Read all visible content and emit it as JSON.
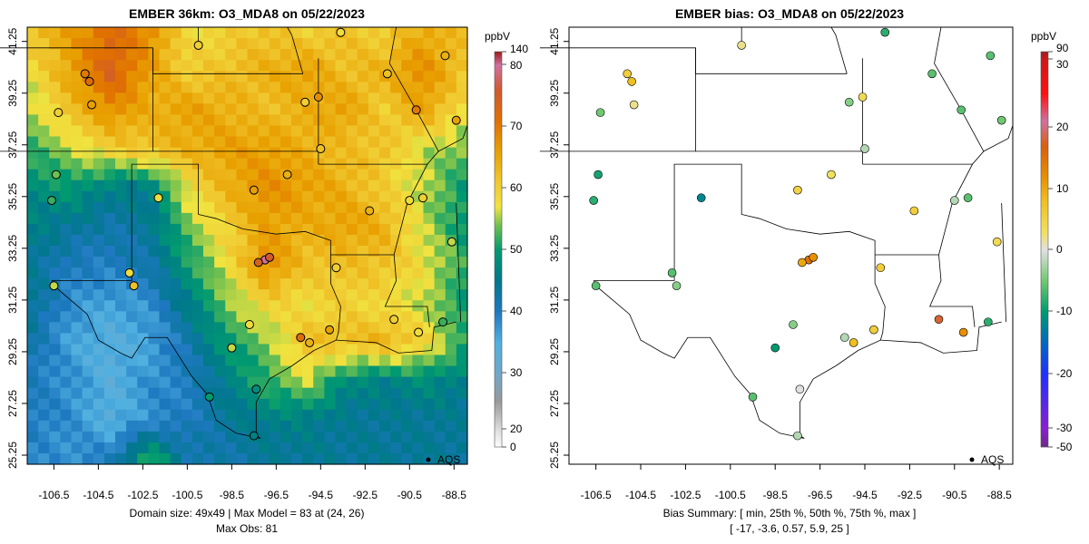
{
  "left": {
    "title": "EMBER 36km: O3_MDA8 on 05/22/2023",
    "footer_line1": "Domain size: 49x49 | Max Model = 83 at (24, 26)",
    "footer_line2": "Max Obs: 81",
    "legend_label": "AQS",
    "colorbar_unit": "ppbV",
    "colorbar_ticks": [
      "140",
      "80",
      "70",
      "60",
      "50",
      "40",
      "30",
      "20",
      "0"
    ]
  },
  "right": {
    "title": "EMBER bias: O3_MDA8 on 05/22/2023",
    "footer_line1": "Bias Summary: [ min, 25th %, 50th %, 75th %, max ]",
    "footer_line2": "[ -17,   -3.6,  0.57,  5.9,   25 ]",
    "legend_label": "AQS",
    "colorbar_unit": "ppbV",
    "colorbar_ticks": [
      "90",
      "30",
      "20",
      "10",
      "0",
      "-10",
      "-20",
      "-30",
      "-50"
    ]
  },
  "axes": {
    "x_ticks": [
      "-106.5",
      "-104.5",
      "-102.5",
      "-100.5",
      "-98.5",
      "-96.5",
      "-94.5",
      "-92.5",
      "-90.5",
      "-88.5"
    ],
    "y_ticks": [
      "41.25",
      "39.25",
      "37.25",
      "35.25",
      "33.25",
      "31.25",
      "29.25",
      "27.25",
      "25.25"
    ]
  },
  "chart_data": {
    "type": "heatmap",
    "lon_range": [
      -107.7,
      -87.9
    ],
    "lat_range": [
      24.9,
      41.8
    ],
    "model_grid_coarse": [
      [
        62,
        66,
        72,
        68,
        58,
        60,
        62,
        60,
        62,
        60,
        65,
        62
      ],
      [
        58,
        66,
        74,
        66,
        60,
        62,
        64,
        66,
        62,
        64,
        68,
        62
      ],
      [
        56,
        62,
        68,
        64,
        66,
        64,
        62,
        64,
        66,
        60,
        66,
        58
      ],
      [
        52,
        56,
        60,
        62,
        64,
        66,
        66,
        64,
        62,
        62,
        56,
        54
      ],
      [
        48,
        50,
        46,
        46,
        58,
        64,
        68,
        66,
        64,
        60,
        56,
        50
      ],
      [
        46,
        44,
        42,
        44,
        54,
        60,
        66,
        64,
        66,
        64,
        56,
        50
      ],
      [
        44,
        40,
        40,
        42,
        50,
        58,
        68,
        62,
        62,
        62,
        58,
        52
      ],
      [
        44,
        38,
        36,
        38,
        46,
        54,
        60,
        58,
        60,
        58,
        56,
        50
      ],
      [
        42,
        36,
        34,
        36,
        42,
        50,
        54,
        62,
        62,
        64,
        60,
        52
      ],
      [
        40,
        38,
        34,
        38,
        40,
        46,
        52,
        56,
        48,
        46,
        48,
        46
      ],
      [
        40,
        38,
        34,
        38,
        40,
        44,
        46,
        46,
        44,
        44,
        44,
        44
      ],
      [
        38,
        38,
        40,
        52,
        42,
        42,
        44,
        44,
        44,
        44,
        44,
        44
      ]
    ],
    "stations": [
      [
        -104.9,
        39.7,
        72,
        8
      ],
      [
        -105.1,
        40.0,
        70,
        6
      ],
      [
        -106.3,
        38.5,
        60,
        -5
      ],
      [
        -104.8,
        38.8,
        66,
        2
      ],
      [
        -106.6,
        35.1,
        52,
        -8
      ],
      [
        -106.4,
        36.1,
        54,
        -9
      ],
      [
        -103.1,
        32.3,
        58,
        -6
      ],
      [
        -106.5,
        31.8,
        56,
        -6
      ],
      [
        -97.5,
        35.5,
        66,
        5
      ],
      [
        -96.0,
        36.1,
        64,
        3
      ],
      [
        -95.2,
        38.9,
        60,
        -4
      ],
      [
        -94.6,
        39.1,
        68,
        4
      ],
      [
        -94.5,
        37.1,
        62,
        -2
      ],
      [
        -92.3,
        34.7,
        64,
        6
      ],
      [
        -90.2,
        38.6,
        70,
        -6
      ],
      [
        -90.5,
        35.1,
        58,
        -2
      ],
      [
        -97.0,
        32.8,
        80,
        15
      ],
      [
        -96.8,
        32.9,
        76,
        12
      ],
      [
        -97.3,
        32.7,
        74,
        10
      ],
      [
        -95.4,
        29.8,
        72,
        -2
      ],
      [
        -95.0,
        29.6,
        64,
        8
      ],
      [
        -94.1,
        30.1,
        66,
        6
      ],
      [
        -91.2,
        30.5,
        60,
        18
      ],
      [
        -90.1,
        30.0,
        58,
        12
      ],
      [
        -97.7,
        30.3,
        58,
        -4
      ],
      [
        -98.5,
        29.4,
        56,
        -10
      ],
      [
        -97.4,
        27.8,
        48,
        0
      ],
      [
        -97.5,
        26.0,
        46,
        -2
      ],
      [
        -93.8,
        32.5,
        60,
        6
      ],
      [
        -89.0,
        30.4,
        52,
        -8
      ],
      [
        -88.6,
        33.5,
        56,
        4
      ],
      [
        -89.9,
        35.2,
        60,
        -6
      ],
      [
        -88.4,
        38.2,
        66,
        -5
      ],
      [
        -88.9,
        40.7,
        64,
        -6
      ],
      [
        -91.5,
        40.0,
        62,
        -6
      ],
      [
        -93.6,
        41.6,
        58,
        -8
      ],
      [
        -100.0,
        41.1,
        60,
        2
      ],
      [
        -102.9,
        31.8,
        62,
        -4
      ],
      [
        -101.8,
        35.2,
        58,
        -12
      ],
      [
        -99.5,
        27.5,
        50,
        -6
      ]
    ]
  },
  "colors": {
    "line": "#000000",
    "dot_outline": "#000000"
  }
}
